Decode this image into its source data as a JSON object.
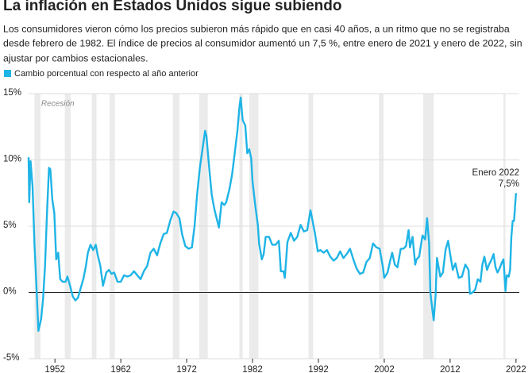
{
  "chart_data": {
    "type": "line",
    "title": "La inflación en Estados Unidos sigue subiendo",
    "subtitle_lines": [
      "Los consumidores vieron cómo los precios subieron más rápido que en casi 40 años, a un ritmo que no se registraba",
      "desde febrero de 1982. El índice de precios al consumidor aumentó un 7,5 %, entre enero de 2021 y enero de 2022, sin",
      "ajustar por cambios estacionales."
    ],
    "recession_label": "Recesión",
    "annotation": {
      "lines": [
        "Enero 2022",
        "7,5%"
      ]
    },
    "xlim": [
      1948,
      2022.5
    ],
    "xticks": [
      1952,
      1962,
      1972,
      1982,
      1992,
      2002,
      2012,
      2022
    ],
    "ylim": [
      -5,
      15
    ],
    "yticks": [
      {
        "value": 15,
        "label": "15%"
      },
      {
        "value": 10,
        "label": "10%"
      },
      {
        "value": 5,
        "label": "5%"
      },
      {
        "value": 0,
        "label": "0%"
      },
      {
        "value": -5,
        "label": "-5%"
      }
    ],
    "grid": true,
    "recessions": [
      [
        1948.9,
        1949.8
      ],
      [
        1953.5,
        1954.4
      ],
      [
        1957.6,
        1958.3
      ],
      [
        1960.3,
        1961.1
      ],
      [
        1969.9,
        1970.9
      ],
      [
        1973.9,
        1975.2
      ],
      [
        1980.0,
        1980.5
      ],
      [
        1981.5,
        1982.9
      ],
      [
        1990.5,
        1991.2
      ],
      [
        2001.2,
        2001.9
      ],
      [
        2007.9,
        2009.5
      ],
      [
        2020.1,
        2020.4
      ]
    ],
    "recession_color": "#ebebeb",
    "series": [
      {
        "name": "Cambio porcentual con respecto al año anterior",
        "color": "#1fb4e6",
        "x": [
          1948.0,
          1948.1,
          1948.3,
          1948.6,
          1948.9,
          1949.1,
          1949.5,
          1949.9,
          1950.2,
          1950.5,
          1950.8,
          1951.1,
          1951.3,
          1951.6,
          1951.9,
          1952.2,
          1952.5,
          1952.8,
          1953.2,
          1953.6,
          1953.9,
          1954.3,
          1954.7,
          1955.1,
          1955.5,
          1955.9,
          1956.3,
          1956.7,
          1957.0,
          1957.4,
          1957.8,
          1958.2,
          1958.5,
          1958.9,
          1959.3,
          1959.8,
          1960.2,
          1960.6,
          1961.0,
          1961.5,
          1962.0,
          1962.5,
          1963.0,
          1963.5,
          1964.0,
          1964.5,
          1965.0,
          1965.5,
          1966.0,
          1966.5,
          1967.0,
          1967.5,
          1968.0,
          1968.5,
          1969.0,
          1969.5,
          1970.0,
          1970.4,
          1970.9,
          1971.3,
          1971.8,
          1972.3,
          1972.8,
          1973.2,
          1973.6,
          1974.0,
          1974.4,
          1974.8,
          1975.0,
          1975.4,
          1975.8,
          1976.2,
          1976.6,
          1976.9,
          1977.3,
          1977.7,
          1978.0,
          1978.5,
          1978.9,
          1979.3,
          1979.7,
          1980.0,
          1980.2,
          1980.5,
          1980.9,
          1981.2,
          1981.5,
          1981.8,
          1982.0,
          1982.4,
          1982.8,
          1983.0,
          1983.4,
          1983.7,
          1984.0,
          1984.5,
          1985.0,
          1985.5,
          1986.0,
          1986.3,
          1986.7,
          1986.9,
          1987.3,
          1987.8,
          1988.3,
          1988.8,
          1989.3,
          1989.8,
          1990.3,
          1990.8,
          1991.0,
          1991.5,
          1991.9,
          1992.3,
          1992.8,
          1993.3,
          1993.8,
          1994.3,
          1994.8,
          1995.3,
          1995.8,
          1996.3,
          1996.8,
          1997.3,
          1997.8,
          1998.3,
          1998.8,
          1999.3,
          1999.8,
          2000.3,
          2000.8,
          2001.3,
          2001.8,
          2002.0,
          2002.5,
          2002.9,
          2003.2,
          2003.6,
          2004.0,
          2004.5,
          2004.9,
          2005.3,
          2005.7,
          2005.9,
          2006.3,
          2006.7,
          2006.9,
          2007.3,
          2007.8,
          2008.2,
          2008.5,
          2008.8,
          2009.0,
          2009.3,
          2009.5,
          2009.8,
          2010.0,
          2010.5,
          2010.9,
          2011.3,
          2011.7,
          2012.0,
          2012.4,
          2012.8,
          2013.3,
          2013.8,
          2014.3,
          2014.8,
          2015.0,
          2015.4,
          2015.8,
          2016.2,
          2016.6,
          2016.9,
          2017.2,
          2017.6,
          2017.9,
          2018.3,
          2018.6,
          2018.9,
          2019.2,
          2019.5,
          2019.9,
          2020.1,
          2020.4,
          2020.6,
          2020.9,
          2021.1,
          2021.3,
          2021.5,
          2021.7,
          2021.9,
          2022.0
        ],
        "values": [
          10.2,
          6.8,
          9.9,
          8.0,
          3.5,
          1.5,
          -2.9,
          -2.0,
          -0.5,
          2.0,
          6.0,
          9.4,
          9.3,
          7.0,
          6.0,
          2.5,
          3.0,
          1.0,
          0.8,
          0.8,
          1.2,
          0.5,
          -0.3,
          -0.6,
          -0.4,
          0.3,
          1.0,
          2.0,
          3.0,
          3.6,
          3.2,
          3.6,
          2.8,
          2.0,
          0.5,
          1.5,
          1.7,
          1.4,
          1.5,
          0.8,
          0.8,
          1.3,
          1.2,
          1.3,
          1.6,
          1.3,
          1.0,
          1.6,
          2.0,
          3.0,
          3.3,
          2.8,
          3.7,
          4.4,
          4.5,
          5.4,
          6.1,
          6.0,
          5.6,
          4.4,
          3.5,
          3.3,
          3.4,
          5.0,
          7.5,
          9.4,
          10.8,
          12.2,
          11.8,
          9.5,
          7.4,
          6.3,
          5.5,
          4.9,
          6.8,
          6.6,
          6.8,
          7.8,
          8.9,
          10.5,
          12.2,
          13.9,
          14.7,
          13.0,
          12.6,
          10.5,
          10.8,
          10.1,
          8.4,
          6.6,
          5.1,
          3.7,
          2.5,
          2.9,
          4.2,
          4.2,
          3.6,
          3.6,
          3.9,
          1.6,
          1.6,
          1.1,
          3.8,
          4.5,
          3.9,
          4.2,
          5.1,
          4.6,
          4.7,
          6.2,
          5.7,
          4.4,
          3.1,
          3.2,
          3.0,
          3.2,
          2.7,
          2.4,
          2.6,
          3.1,
          2.6,
          2.9,
          3.3,
          2.5,
          1.8,
          1.4,
          1.5,
          2.3,
          2.6,
          3.7,
          3.4,
          3.3,
          1.9,
          1.1,
          1.5,
          2.4,
          3.0,
          2.1,
          1.9,
          3.3,
          3.3,
          3.5,
          4.7,
          3.4,
          4.2,
          2.1,
          2.5,
          2.7,
          4.3,
          4.0,
          5.6,
          3.7,
          0.0,
          -1.3,
          -2.1,
          -0.2,
          2.6,
          1.2,
          1.5,
          3.2,
          3.9,
          2.9,
          1.7,
          2.2,
          1.1,
          1.2,
          2.1,
          1.7,
          -0.1,
          0.0,
          0.2,
          1.0,
          0.8,
          2.1,
          2.7,
          1.7,
          2.1,
          2.5,
          2.9,
          1.9,
          1.5,
          1.8,
          2.3,
          2.5,
          0.1,
          1.3,
          1.2,
          1.7,
          4.2,
          5.4,
          5.4,
          6.8,
          7.5
        ]
      }
    ]
  }
}
